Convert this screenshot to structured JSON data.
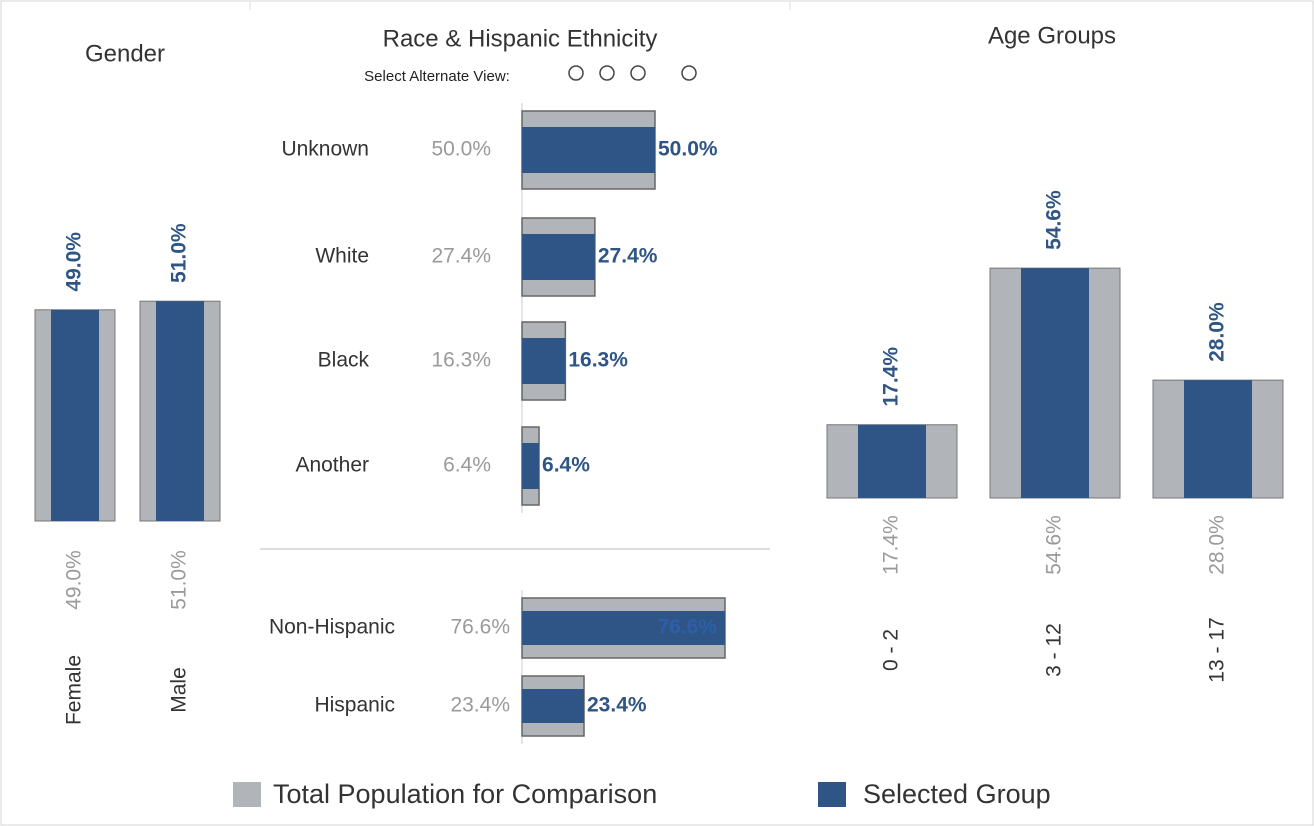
{
  "controls": {
    "label": "Select Alternate View:"
  },
  "legend": [
    {
      "name": "Total Population for Comparison",
      "color": "#b1b4b8"
    },
    {
      "name": "Selected Group",
      "color": "#2e5585"
    }
  ],
  "chart_data": [
    {
      "type": "bar",
      "orientation": "vertical",
      "title": "Gender",
      "categories": [
        "Female",
        "Male"
      ],
      "series": [
        {
          "values": [
            49.0,
            51.0
          ],
          "value_labels": [
            "49.0%",
            "51.0%"
          ]
        },
        {
          "values": [
            49.0,
            51.0
          ],
          "value_labels": [
            "49.0%",
            "51.0%"
          ]
        }
      ]
    },
    {
      "type": "bar",
      "orientation": "horizontal",
      "title": "Race & Hispanic Ethnicity",
      "categories": [
        "Unknown",
        "White",
        "Black",
        "Another"
      ],
      "series": [
        {
          "values": [
            50.0,
            27.4,
            16.3,
            6.4
          ],
          "value_labels": [
            "50.0%",
            "27.4%",
            "16.3%",
            "6.4%"
          ]
        },
        {
          "values": [
            50.0,
            27.4,
            16.3,
            6.4
          ],
          "value_labels": [
            "50.0%",
            "27.4%",
            "16.3%",
            "6.4%"
          ]
        }
      ]
    },
    {
      "type": "bar",
      "orientation": "horizontal",
      "categories": [
        "Non-Hispanic",
        "Hispanic"
      ],
      "series": [
        {
          "values": [
            76.6,
            23.4
          ],
          "value_labels": [
            "76.6%",
            "23.4%"
          ]
        },
        {
          "values": [
            76.6,
            23.4
          ],
          "value_labels": [
            "76.6%",
            "23.4%"
          ]
        }
      ]
    },
    {
      "type": "bar",
      "orientation": "vertical",
      "title": "Age Groups",
      "categories": [
        "0 - 2",
        "3 - 12",
        "13 - 17"
      ],
      "series": [
        {
          "values": [
            17.4,
            54.6,
            28.0
          ],
          "value_labels": [
            "17.4%",
            "54.6%",
            "28.0%"
          ]
        },
        {
          "values": [
            17.4,
            54.6,
            28.0
          ],
          "value_labels": [
            "17.4%",
            "54.6%",
            "28.0%"
          ]
        }
      ]
    }
  ]
}
